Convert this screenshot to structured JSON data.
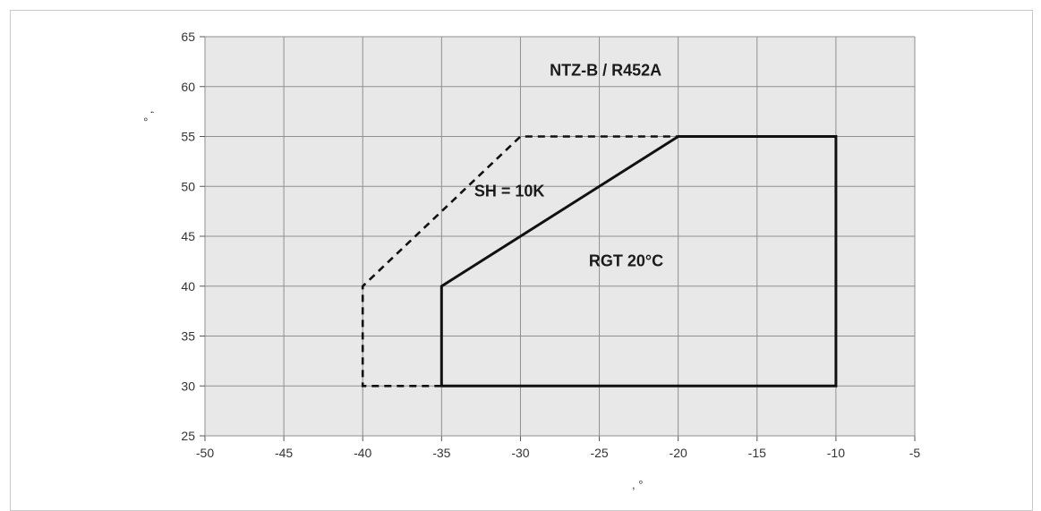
{
  "chart_data": {
    "type": "line",
    "title": "NTZ-B / R452A",
    "xlabel": "",
    "ylabel": "",
    "x_unit_glyph": ", °",
    "y_unit_glyph": "° ,",
    "xlim": [
      -50,
      -5
    ],
    "ylim": [
      25,
      65
    ],
    "x_ticks": [
      -50,
      -45,
      -40,
      -35,
      -30,
      -25,
      -20,
      -15,
      -10,
      -5
    ],
    "y_ticks": [
      25,
      30,
      35,
      40,
      45,
      50,
      55,
      60,
      65
    ],
    "x_tick_labels": [
      "-50",
      "-45",
      "-40",
      "-35",
      "-30",
      "-25",
      "-20",
      "-15",
      "-10",
      "-5"
    ],
    "y_tick_labels": [
      "25",
      "30",
      "35",
      "40",
      "45",
      "50",
      "55",
      "60",
      "65"
    ],
    "grid": true,
    "series": [
      {
        "style": "dashed",
        "points": [
          [
            -35,
            30
          ],
          [
            -40,
            30
          ],
          [
            -40,
            40
          ],
          [
            -30,
            55
          ],
          [
            -20,
            55
          ]
        ]
      },
      {
        "style": "solid",
        "points": [
          [
            -35,
            30
          ],
          [
            -35,
            40
          ],
          [
            -20,
            55
          ],
          [
            -10,
            55
          ],
          [
            -10,
            30
          ],
          [
            -35,
            30
          ]
        ]
      }
    ],
    "annotations": [
      {
        "id": "sh",
        "text": "SH = 10K",
        "x": -30.7,
        "y": 49
      },
      {
        "id": "rgt",
        "text": "RGT 20°C",
        "x": -23.3,
        "y": 42
      }
    ],
    "colors": {
      "plot_bg": "#e8e8e8",
      "grid": "#8f8f8f",
      "line": "#111111"
    }
  }
}
